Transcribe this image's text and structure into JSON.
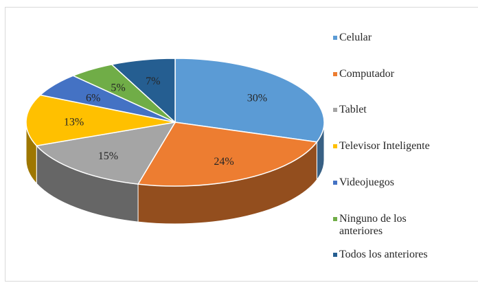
{
  "chart_data": {
    "type": "pie",
    "categories": [
      "Celular",
      "Computador",
      "Tablet",
      "Televisor Inteligente",
      "Videojuegos",
      "Ninguno de los anteriores",
      "Todos los anteriores"
    ],
    "values": [
      30,
      24,
      15,
      13,
      6,
      5,
      7
    ],
    "value_labels": [
      "30%",
      "24%",
      "15%",
      "13%",
      "6%",
      "5%",
      "7%"
    ],
    "colors": [
      "#5b9bd5",
      "#ed7d31",
      "#a5a5a5",
      "#ffc000",
      "#4472c4",
      "#70ad47",
      "#255e91"
    ],
    "legend": "right"
  }
}
